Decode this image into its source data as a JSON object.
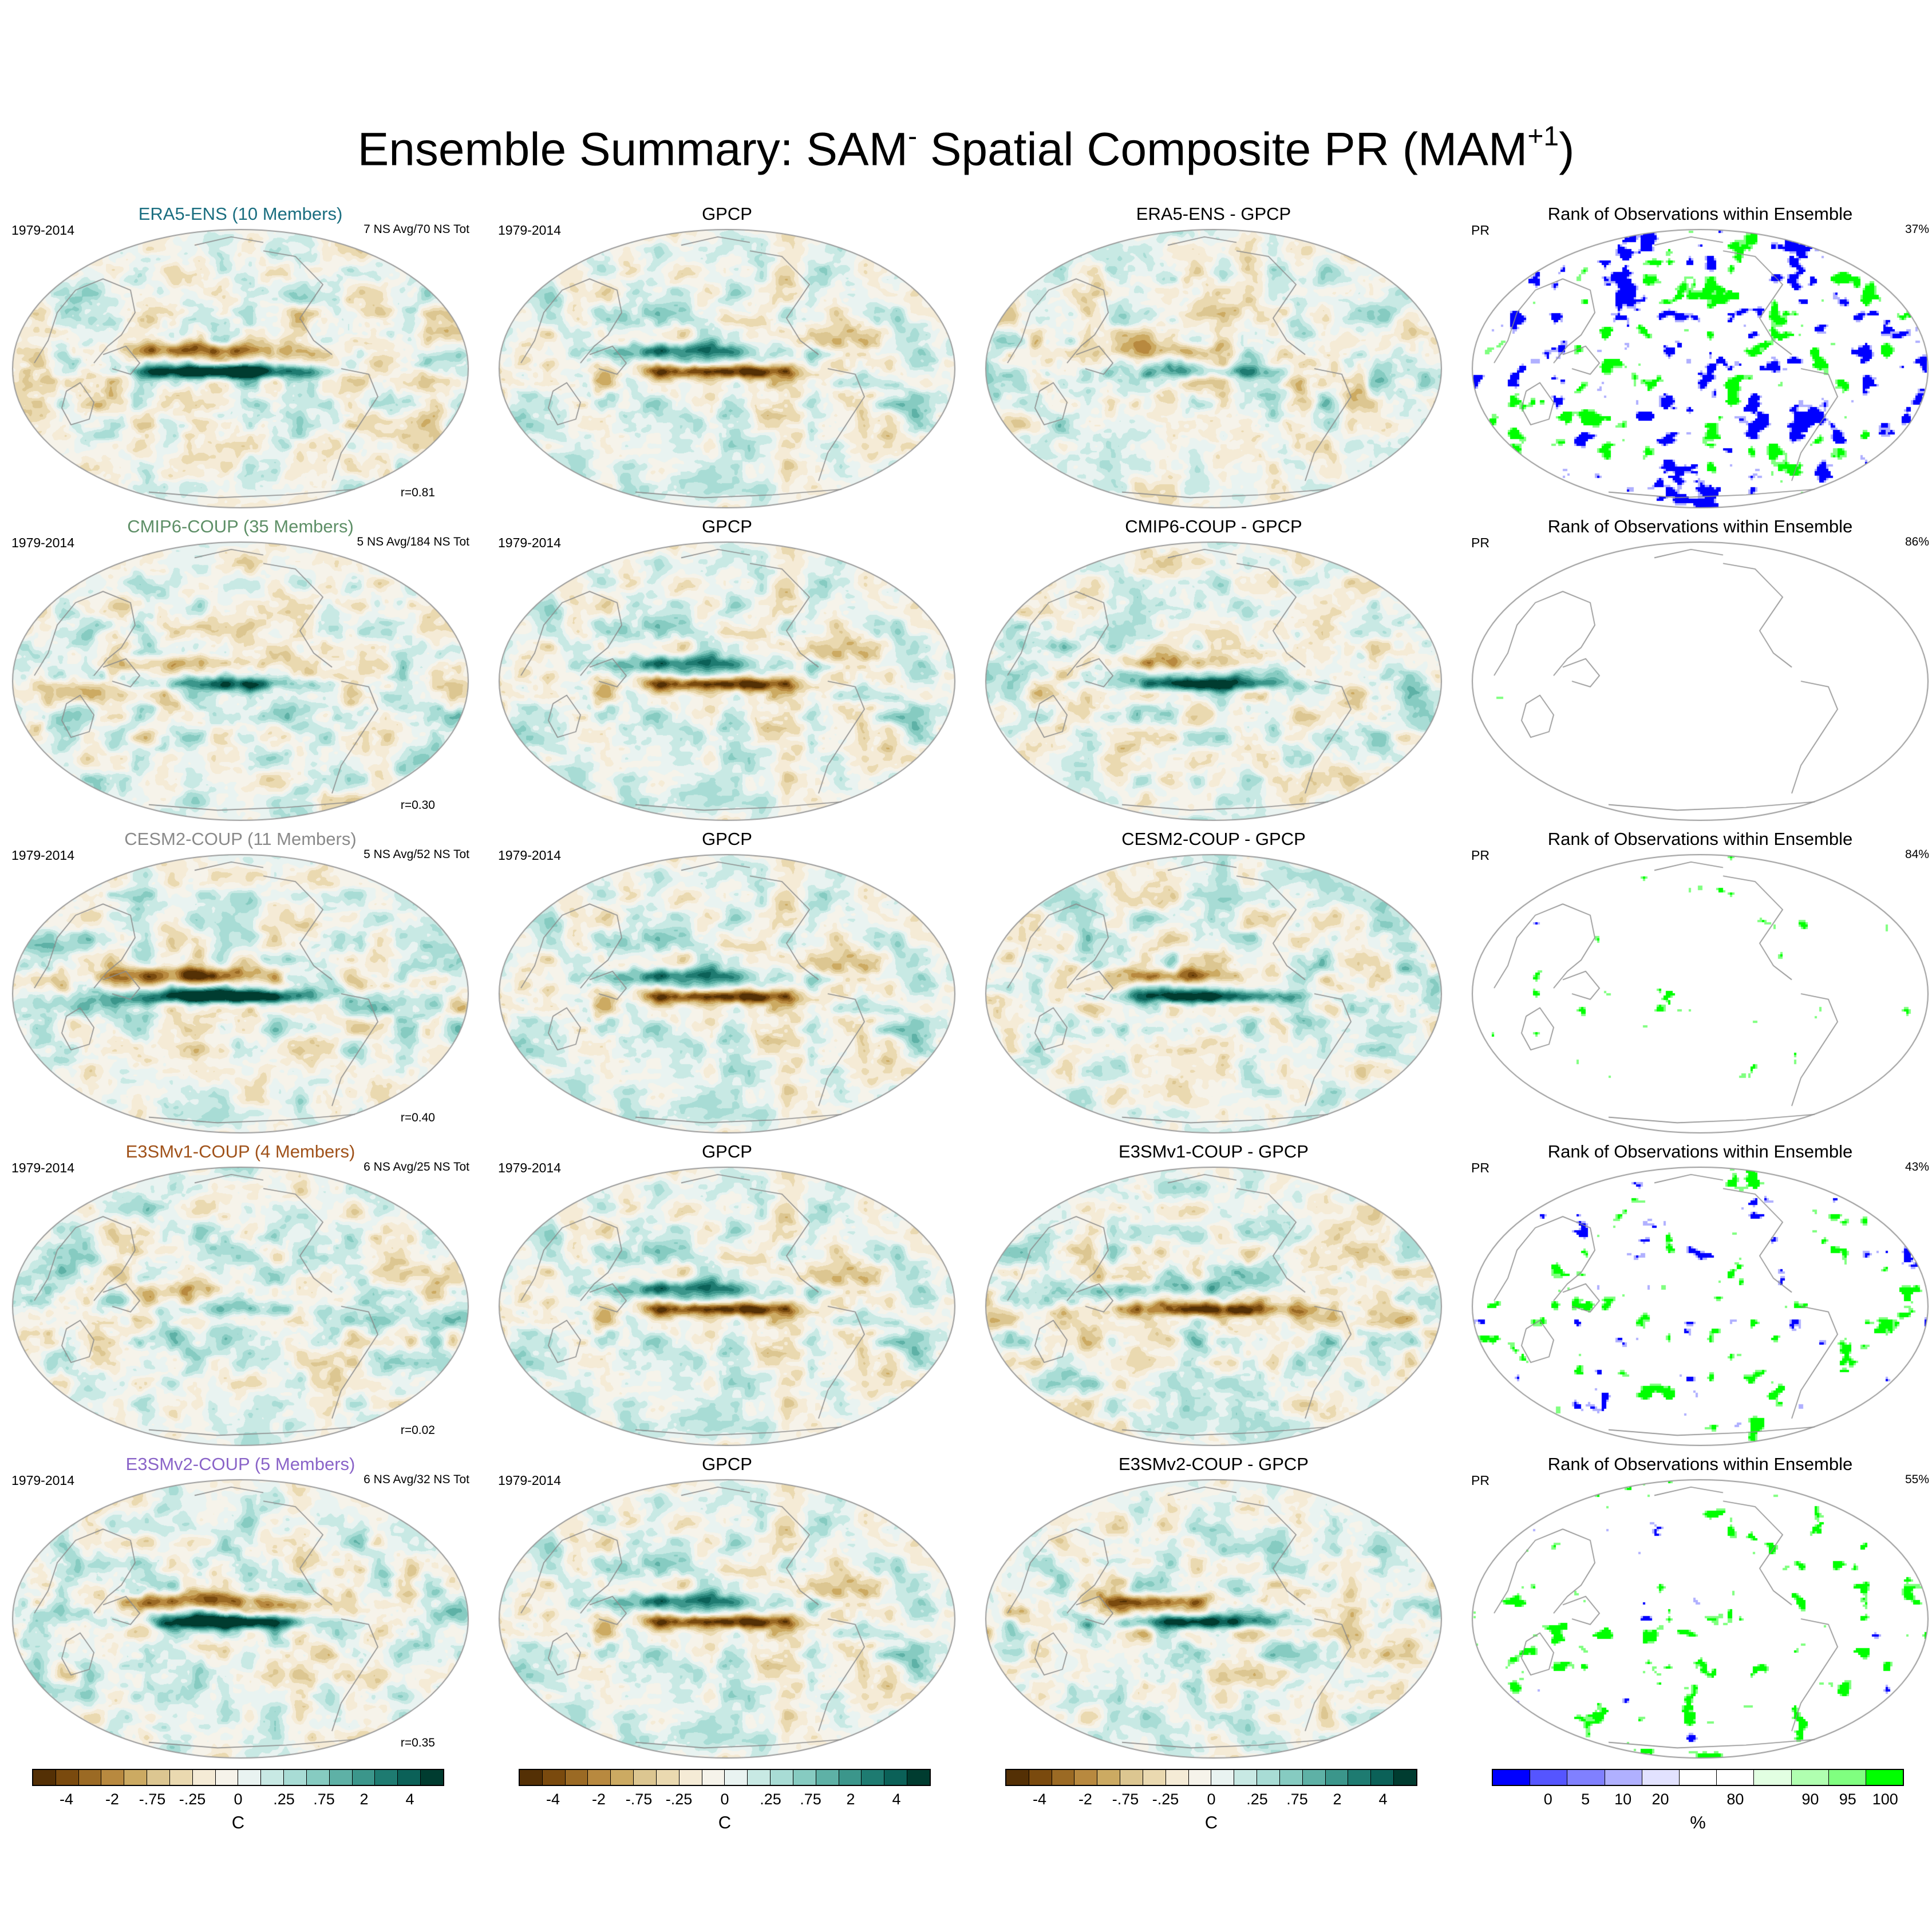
{
  "title": {
    "part1": "Ensemble Summary: SAM",
    "sup1": "-",
    "part2": " Spatial Composite PR (MAM",
    "sup2": "+1",
    "part3": ")"
  },
  "diverging_colors": [
    "#543005",
    "#7a4a0e",
    "#9b6a24",
    "#b8893f",
    "#ccaa62",
    "#dcc691",
    "#ead9b0",
    "#f5ebd6",
    "#f6f3ea",
    "#e9f3f1",
    "#c8e9e4",
    "#a8dcd5",
    "#86cbc1",
    "#5eb1a6",
    "#3b968b",
    "#1e7b71",
    "#0b6158",
    "#003c30"
  ],
  "rank_colors": [
    "#0000ff",
    "#5555ff",
    "#8080ff",
    "#b0b0ff",
    "#e2e2ff",
    "#ffffff",
    "#ffffff",
    "#e2ffe2",
    "#b0ffb0",
    "#80ff80",
    "#00ff00"
  ],
  "colorbars": [
    {
      "ticks": [
        "-4",
        "-2",
        "-.75",
        "-.25",
        "0",
        ".25",
        ".75",
        "2",
        "4"
      ],
      "units": "C"
    },
    {
      "ticks": [
        "-4",
        "-2",
        "-.75",
        "-.25",
        "0",
        ".25",
        ".75",
        "2",
        "4"
      ],
      "units": "C"
    },
    {
      "ticks": [
        "-4",
        "-2",
        "-.75",
        "-.25",
        "0",
        ".25",
        ".75",
        "2",
        "4"
      ],
      "units": "C"
    },
    {
      "ticks": [
        "0",
        "5",
        "10",
        "20",
        "80",
        "90",
        "95",
        "100"
      ],
      "units": "%"
    }
  ],
  "rows": [
    {
      "ens": {
        "title": "ERA5-ENS (10 Members)",
        "title_color": "#1a6e80",
        "period": "1979-2014",
        "ns": "7 NS Avg/70 NS Tot",
        "r": "r=0.81"
      },
      "obs": {
        "title": "GPCP",
        "period": "1979-2014"
      },
      "diff": {
        "title": "ERA5-ENS - GPCP"
      },
      "rank": {
        "title": "Rank of Observations within Ensemble",
        "var": "PR",
        "pct": "37%"
      }
    },
    {
      "ens": {
        "title": "CMIP6-COUP (35 Members)",
        "title_color": "#5e8f67",
        "period": "1979-2014",
        "ns": "5 NS Avg/184 NS Tot",
        "r": "r=0.30"
      },
      "obs": {
        "title": "GPCP",
        "period": "1979-2014"
      },
      "diff": {
        "title": "CMIP6-COUP - GPCP"
      },
      "rank": {
        "title": "Rank of Observations within Ensemble",
        "var": "PR",
        "pct": "86%"
      }
    },
    {
      "ens": {
        "title": "CESM2-COUP (11 Members)",
        "title_color": "#8a8a8a",
        "period": "1979-2014",
        "ns": "5 NS Avg/52 NS Tot",
        "r": "r=0.40"
      },
      "obs": {
        "title": "GPCP",
        "period": "1979-2014"
      },
      "diff": {
        "title": "CESM2-COUP - GPCP"
      },
      "rank": {
        "title": "Rank of Observations within Ensemble",
        "var": "PR",
        "pct": "84%"
      }
    },
    {
      "ens": {
        "title": "E3SMv1-COUP (4 Members)",
        "title_color": "#a0521a",
        "period": "1979-2014",
        "ns": "6 NS Avg/25 NS Tot",
        "r": "r=0.02"
      },
      "obs": {
        "title": "GPCP",
        "period": "1979-2014"
      },
      "diff": {
        "title": "E3SMv1-COUP - GPCP"
      },
      "rank": {
        "title": "Rank of Observations within Ensemble",
        "var": "PR",
        "pct": "43%"
      }
    },
    {
      "ens": {
        "title": "E3SMv2-COUP (5 Members)",
        "title_color": "#8a64c8",
        "period": "1979-2014",
        "ns": "6 NS Avg/32 NS Tot",
        "r": "r=0.35"
      },
      "obs": {
        "title": "GPCP",
        "period": "1979-2014"
      },
      "diff": {
        "title": "E3SMv2-COUP - GPCP"
      },
      "rank": {
        "title": "Rank of Observations within Ensemble",
        "var": "PR",
        "pct": "55%"
      }
    }
  ]
}
